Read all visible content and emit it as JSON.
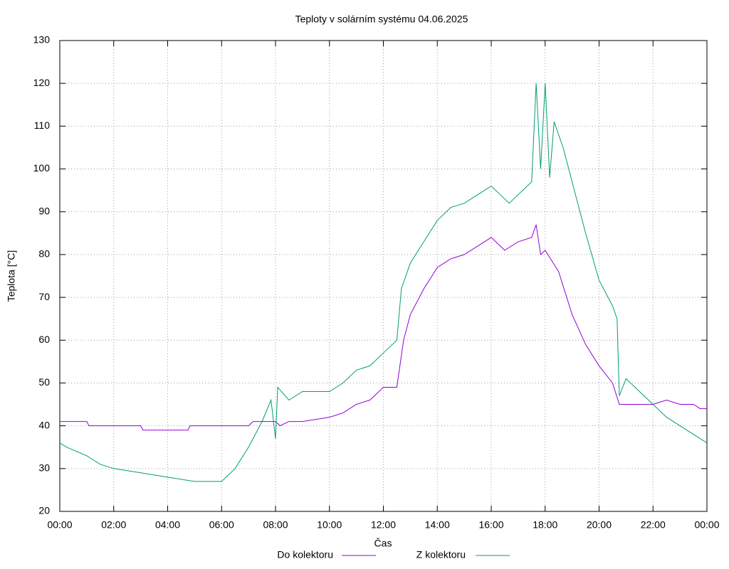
{
  "chart_data": {
    "type": "line",
    "title": "Teploty v solárním systému 04.06.2025",
    "xlabel": "Čas",
    "ylabel": "Teplota [°C]",
    "xlim": [
      0,
      24
    ],
    "ylim": [
      20,
      130
    ],
    "xticks": [
      {
        "value": 0,
        "label": "00:00"
      },
      {
        "value": 2,
        "label": "02:00"
      },
      {
        "value": 4,
        "label": "04:00"
      },
      {
        "value": 6,
        "label": "06:00"
      },
      {
        "value": 8,
        "label": "08:00"
      },
      {
        "value": 10,
        "label": "10:00"
      },
      {
        "value": 12,
        "label": "12:00"
      },
      {
        "value": 14,
        "label": "14:00"
      },
      {
        "value": 16,
        "label": "16:00"
      },
      {
        "value": 18,
        "label": "18:00"
      },
      {
        "value": 20,
        "label": "20:00"
      },
      {
        "value": 22,
        "label": "22:00"
      },
      {
        "value": 24,
        "label": "00:00"
      }
    ],
    "yticks": [
      20,
      30,
      40,
      50,
      60,
      70,
      80,
      90,
      100,
      110,
      120,
      130
    ],
    "grid": true,
    "legend": "bottom",
    "series": [
      {
        "name": "Do kolektoru",
        "color": "#9400d3",
        "x": [
          0,
          1,
          1.083,
          3,
          3.083,
          4,
          4.75,
          4.833,
          6,
          7,
          7.167,
          8,
          8.167,
          8.5,
          9,
          10,
          10.5,
          11,
          11.5,
          12,
          12.5,
          12.75,
          13,
          13.5,
          14,
          14.5,
          15,
          15.5,
          16,
          16.5,
          17,
          17.5,
          17.667,
          17.833,
          18,
          18.5,
          19,
          19.5,
          20,
          20.5,
          20.75,
          21,
          22,
          22.5,
          23,
          23.5,
          23.75,
          24
        ],
        "values": [
          41,
          41,
          40,
          40,
          39,
          39,
          39,
          40,
          40,
          40,
          41,
          41,
          40,
          41,
          41,
          42,
          43,
          45,
          46,
          49,
          49,
          60,
          66,
          72,
          77,
          79,
          80,
          82,
          84,
          81,
          83,
          84,
          87,
          80,
          81,
          76,
          66,
          59,
          54,
          50,
          45,
          45,
          45,
          46,
          45,
          45,
          44,
          44
        ]
      },
      {
        "name": "Z kolektoru",
        "color": "#009e73",
        "x": [
          0,
          0.25,
          1,
          1.5,
          2,
          3,
          4,
          5,
          6,
          6.5,
          7,
          7.5,
          7.833,
          8,
          8.083,
          8.5,
          9,
          10,
          10.5,
          11,
          11.5,
          12,
          12.5,
          12.667,
          13,
          13.5,
          14,
          14.5,
          15,
          15.5,
          16,
          16.333,
          16.667,
          17,
          17.5,
          17.667,
          17.833,
          18,
          18.167,
          18.333,
          18.667,
          19,
          19.5,
          20,
          20.5,
          20.667,
          20.75,
          21,
          21.5,
          22,
          22.5,
          23,
          23.5,
          24
        ],
        "values": [
          36,
          35,
          33,
          31,
          30,
          29,
          28,
          27,
          27,
          30,
          35,
          41,
          46,
          37,
          49,
          46,
          48,
          48,
          50,
          53,
          54,
          57,
          60,
          72,
          78,
          83,
          88,
          91,
          92,
          94,
          96,
          94,
          92,
          94,
          97,
          120,
          100,
          120,
          98,
          111,
          105,
          97,
          85,
          74,
          68,
          65,
          47,
          51,
          48,
          45,
          42,
          40,
          38,
          36
        ]
      }
    ]
  }
}
